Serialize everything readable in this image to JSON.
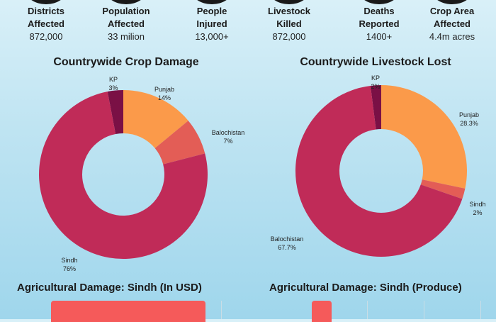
{
  "stats": [
    {
      "label": "Districts\nAffected",
      "value": "872,000"
    },
    {
      "label": "Population\nAffected",
      "value": "33 milion"
    },
    {
      "label": "People\nInjured",
      "value": "13,000+"
    },
    {
      "label": "Livestock\nKilled",
      "value": "872,000"
    },
    {
      "label": "Deaths\nReported",
      "value": "1400+"
    },
    {
      "label": "Crop Area\nAffected",
      "value": "4.4m acres"
    }
  ],
  "chart_data": [
    {
      "type": "pie",
      "title": "Countrywide Crop Damage",
      "categories": [
        "KP",
        "Punjab",
        "Balochistan",
        "Sindh"
      ],
      "values": [
        3,
        14,
        7,
        76
      ],
      "labels": [
        "3%",
        "14%",
        "7%",
        "76%"
      ],
      "colors": [
        "#7a1045",
        "#fb9a4a",
        "#e35d56",
        "#c02b58"
      ],
      "donut": true
    },
    {
      "type": "pie",
      "title": "Countrywide Livestock Lost",
      "categories": [
        "KP",
        "Punjab",
        "Sindh",
        "Balochistan"
      ],
      "values": [
        2,
        28.3,
        2,
        67.7
      ],
      "labels": [
        "2%",
        "28.3%",
        "2%",
        "67.7%"
      ],
      "colors": [
        "#7a1045",
        "#fb9a4a",
        "#e35d56",
        "#c02b58"
      ],
      "donut": true
    },
    {
      "type": "bar",
      "title": "Agricultural Damage: Sindh (In USD)"
    },
    {
      "type": "bar",
      "title": "Agricultural Damage: Sindh (Produce)"
    }
  ]
}
